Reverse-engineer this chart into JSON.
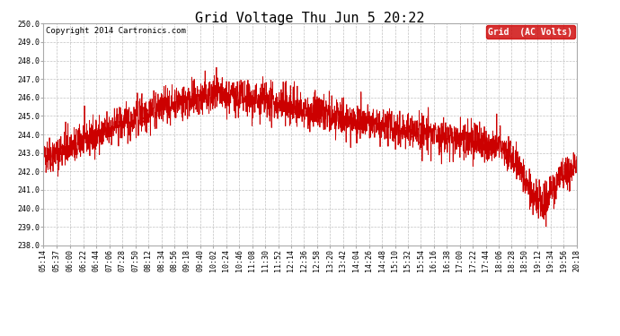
{
  "title": "Grid Voltage Thu Jun 5 20:22",
  "copyright": "Copyright 2014 Cartronics.com",
  "legend_label": "Grid  (AC Volts)",
  "line_color": "#cc0000",
  "background_color": "#ffffff",
  "plot_bg_color": "#ffffff",
  "grid_color": "#bbbbbb",
  "ylim": [
    238.0,
    250.0
  ],
  "ytick_start": 238.0,
  "ytick_end": 250.0,
  "ytick_step": 1.0,
  "xtick_labels": [
    "05:14",
    "05:37",
    "06:00",
    "06:22",
    "06:44",
    "07:06",
    "07:28",
    "07:50",
    "08:12",
    "08:34",
    "08:56",
    "09:18",
    "09:40",
    "10:02",
    "10:24",
    "10:46",
    "11:08",
    "11:30",
    "11:52",
    "12:14",
    "12:36",
    "12:58",
    "13:20",
    "13:42",
    "14:04",
    "14:26",
    "14:48",
    "15:10",
    "15:32",
    "15:54",
    "16:16",
    "16:38",
    "17:00",
    "17:22",
    "17:44",
    "18:06",
    "18:28",
    "18:50",
    "19:12",
    "19:34",
    "19:56",
    "20:18"
  ],
  "title_fontsize": 11,
  "copyright_fontsize": 6.5,
  "axis_fontsize": 6,
  "legend_fontsize": 7,
  "seed": 42
}
